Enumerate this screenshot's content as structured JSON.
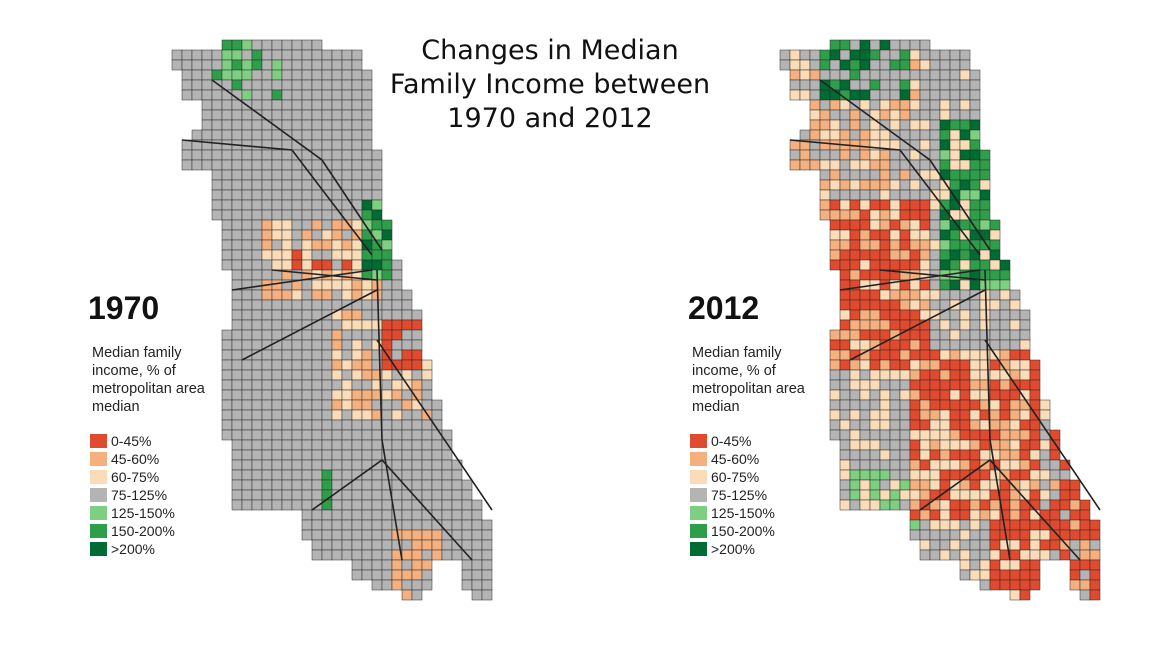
{
  "title": "Changes in Median Family Income between 1970 and 2012",
  "colors": {
    "0-45%": "#e04a2f",
    "45-60%": "#f4b07e",
    "60-75%": "#fbdcb9",
    "75-125%": "#b4b4b4",
    "125-150%": "#7fcf83",
    "150-200%": "#2f9e4a",
    ">200%": "#006b33",
    "road": "#222222"
  },
  "maps": [
    {
      "year": "1970",
      "legend_title": "Median family income, % of metropolitan area median",
      "legend": [
        "0-45%",
        "45-60%",
        "60-75%",
        "75-125%",
        "125-150%",
        "150-200%",
        ">200%"
      ]
    },
    {
      "year": "2012",
      "legend_title": "Median family income, % of metropolitan area median",
      "legend": [
        "0-45%",
        "45-60%",
        "60-75%",
        "75-125%",
        "125-150%",
        "150-200%",
        ">200%"
      ]
    }
  ]
}
